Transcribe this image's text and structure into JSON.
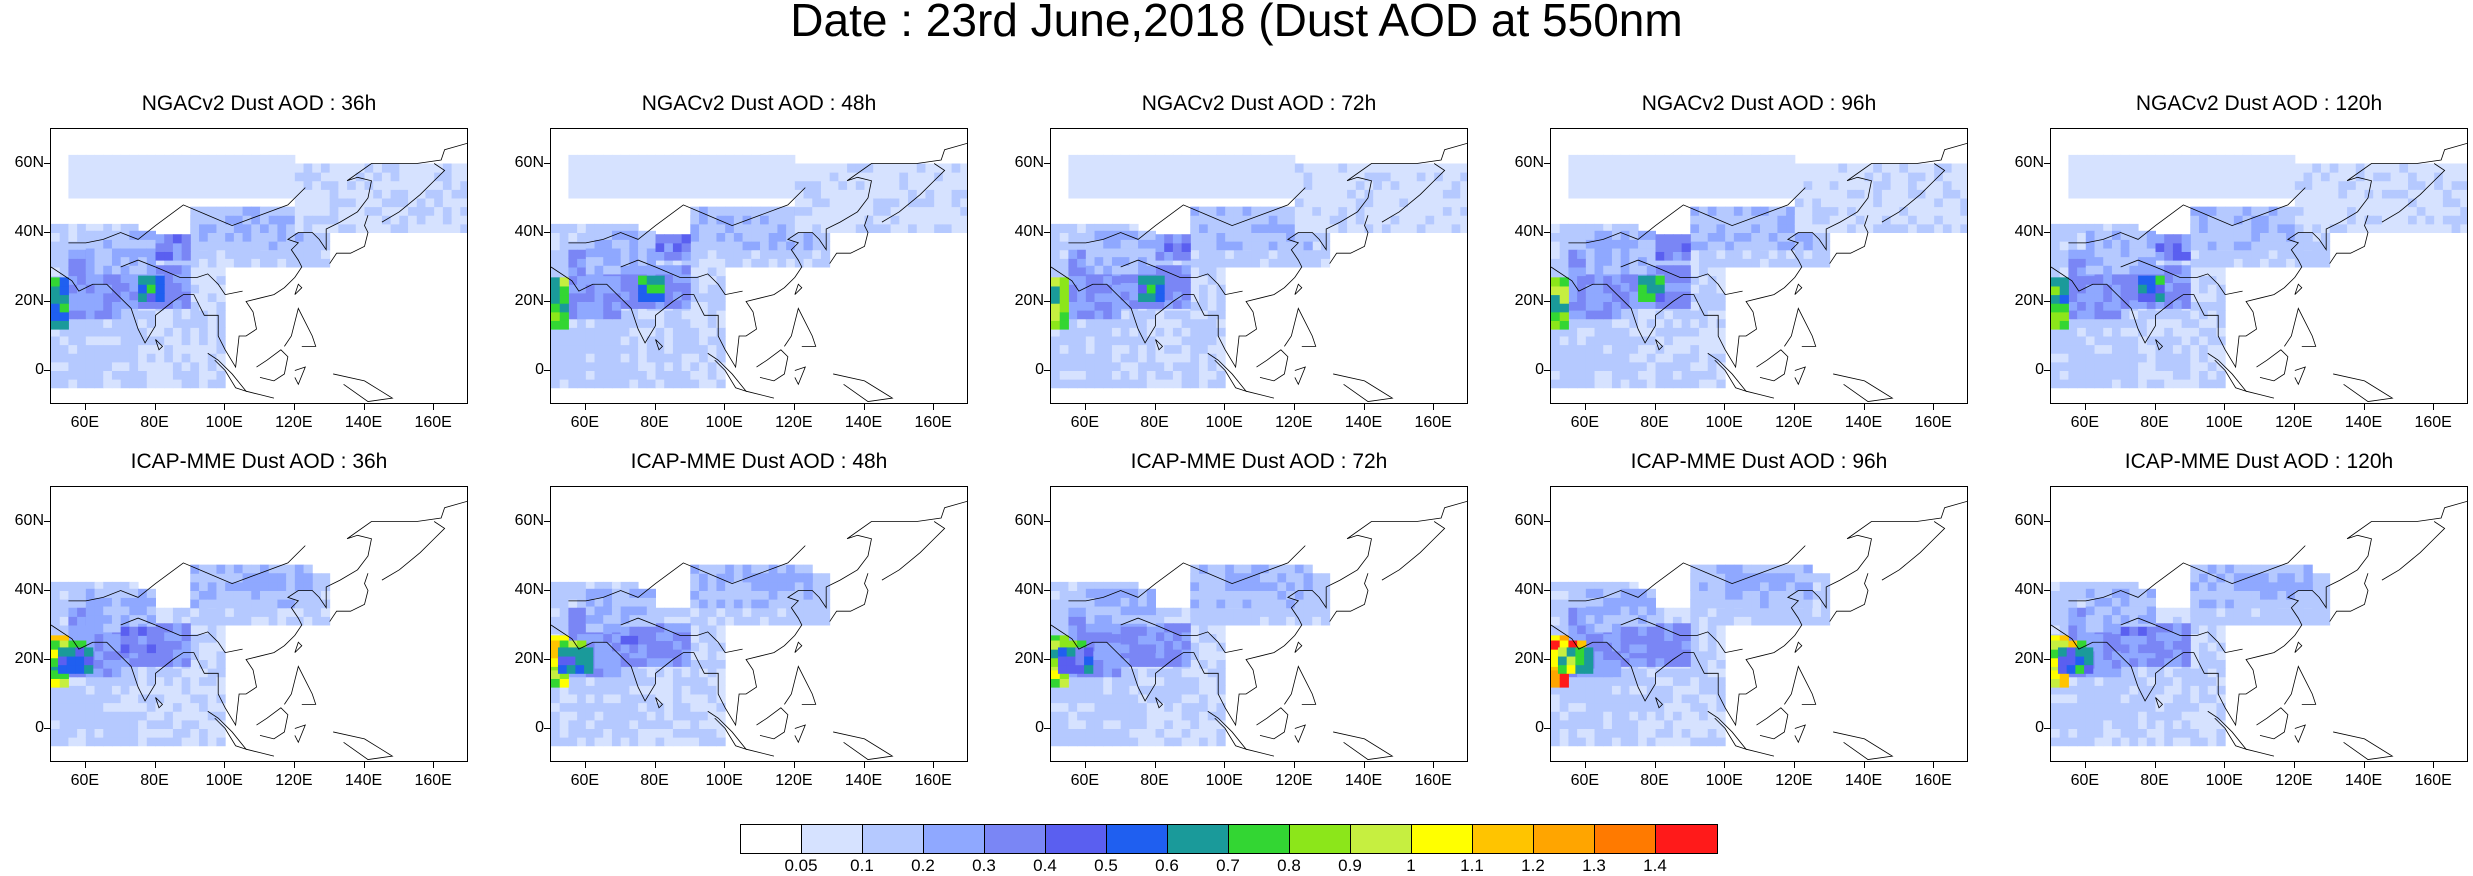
{
  "title": "Date : 23rd June,2018 (Dust AOD at 550nm",
  "panels": [
    {
      "title": "NGACv2 Dust AOD : 36h",
      "row": 0,
      "col": 0,
      "model": "ngac",
      "hotspot": 0.72
    },
    {
      "title": "NGACv2 Dust AOD : 48h",
      "row": 0,
      "col": 1,
      "model": "ngac",
      "hotspot": 0.78
    },
    {
      "title": "NGACv2 Dust AOD : 72h",
      "row": 0,
      "col": 2,
      "model": "ngac",
      "hotspot": 0.8
    },
    {
      "title": "NGACv2 Dust AOD : 96h",
      "row": 0,
      "col": 3,
      "model": "ngac",
      "hotspot": 0.78
    },
    {
      "title": "NGACv2 Dust AOD : 120h",
      "row": 0,
      "col": 4,
      "model": "ngac",
      "hotspot": 0.72
    },
    {
      "title": "ICAP-MME Dust AOD : 36h",
      "row": 1,
      "col": 0,
      "model": "icap",
      "hotspot": 0.9
    },
    {
      "title": "ICAP-MME Dust AOD : 48h",
      "row": 1,
      "col": 1,
      "model": "icap",
      "hotspot": 0.95
    },
    {
      "title": "ICAP-MME Dust AOD : 72h",
      "row": 1,
      "col": 2,
      "model": "icap",
      "hotspot": 0.85
    },
    {
      "title": "ICAP-MME Dust AOD : 96h",
      "row": 1,
      "col": 3,
      "model": "icap",
      "hotspot": 1.4
    },
    {
      "title": "ICAP-MME Dust AOD : 120h",
      "row": 1,
      "col": 4,
      "model": "icap",
      "hotspot": 0.95
    }
  ],
  "lat_labels": [
    "60N",
    "40N",
    "20N",
    "0"
  ],
  "lon_labels": [
    "60E",
    "80E",
    "100E",
    "120E",
    "140E",
    "160E"
  ],
  "colorbar": {
    "labels": [
      "0.05",
      "0.1",
      "0.2",
      "0.3",
      "0.4",
      "0.5",
      "0.6",
      "0.7",
      "0.8",
      "0.9",
      "1",
      "1.1",
      "1.2",
      "1.3",
      "1.4"
    ],
    "colors": [
      "#ffffff",
      "#d6e2ff",
      "#b5c9ff",
      "#8fa8ff",
      "#7a86f5",
      "#5a5ff0",
      "#1f5ff0",
      "#1a9a9a",
      "#33d633",
      "#8ce61a",
      "#c6ef40",
      "#ffff00",
      "#ffc400",
      "#ffa500",
      "#ff7a00",
      "#ff1a1a"
    ]
  }
}
